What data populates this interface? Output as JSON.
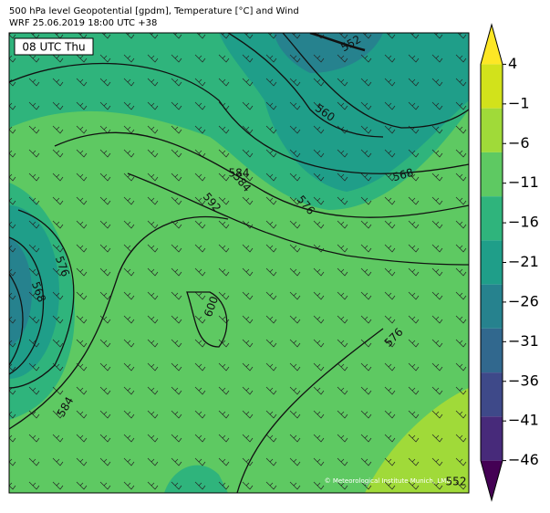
{
  "header": {
    "title": "500 hPa level Geopotential [gpdm], Temperature [°C] and Wind",
    "subtitle": "WRF 25.06.2019 18:00 UTC +38"
  },
  "map": {
    "time_label": "08 UTC Thu",
    "copyright": "© Meteorological Institute Munich, LMU",
    "contour_labels": [
      552,
      560,
      568,
      576,
      584,
      592,
      600,
      584,
      576,
      568,
      576,
      584,
      552
    ]
  },
  "colorbar": {
    "lim": [
      -51,
      9
    ],
    "ticks": [
      {
        "value": 4,
        "label": "4"
      },
      {
        "value": -1,
        "label": "−1"
      },
      {
        "value": -6,
        "label": "−6"
      },
      {
        "value": -11,
        "label": "−11"
      },
      {
        "value": -16,
        "label": "−16"
      },
      {
        "value": -21,
        "label": "−21"
      },
      {
        "value": -26,
        "label": "−26"
      },
      {
        "value": -31,
        "label": "−31"
      },
      {
        "value": -36,
        "label": "−36"
      },
      {
        "value": -41,
        "label": "−41"
      },
      {
        "value": -46,
        "label": "−46"
      }
    ],
    "colors": [
      "#fde725",
      "#d2e21b",
      "#a0da39",
      "#5ec962",
      "#2fb47c",
      "#1f9e89",
      "#26828e",
      "#31688e",
      "#3e4989",
      "#472a7a",
      "#440154"
    ]
  }
}
